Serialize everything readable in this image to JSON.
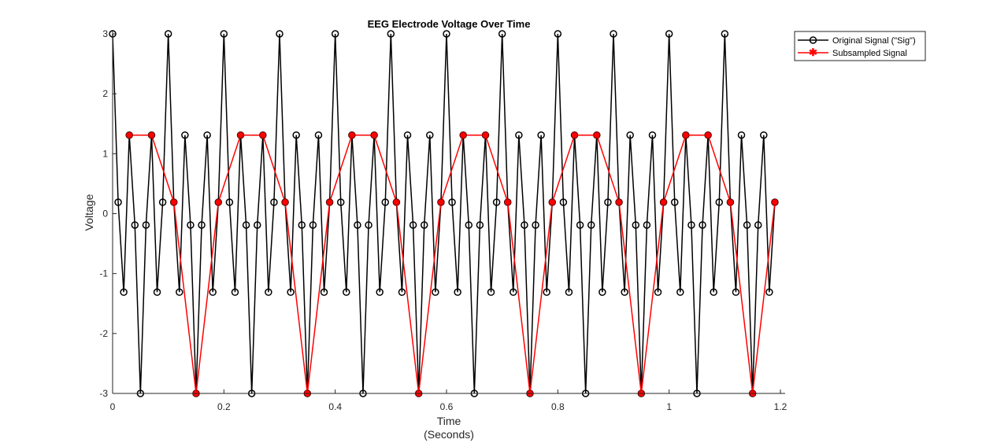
{
  "chart_data": {
    "type": "line",
    "title": "EEG Electrode Voltage Over Time",
    "xlabel": "Time",
    "xlabel_sub": "(Seconds)",
    "ylabel": "Voltage",
    "xlim": [
      0,
      1.2
    ],
    "ylim": [
      -3,
      3
    ],
    "xticks": [
      0,
      0.2,
      0.4,
      0.6,
      0.8,
      1,
      1.2
    ],
    "xtick_labels": [
      "0",
      "0.2",
      "0.4",
      "0.6",
      "0.8",
      "1",
      "1.2"
    ],
    "yticks": [
      -3,
      -2,
      -1,
      0,
      1,
      2,
      3
    ],
    "ytick_labels": [
      "-3",
      "-2",
      "-1",
      "0",
      "1",
      "2",
      "3"
    ],
    "grid": false,
    "legend_position": "top-right",
    "series": [
      {
        "name": "Original Signal (\"Sig\")",
        "color": "#000000",
        "marker": "open-circle",
        "x": [
          0,
          0.01,
          0.02,
          0.03,
          0.04,
          0.05,
          0.06,
          0.07,
          0.08,
          0.09,
          0.1,
          0.11,
          0.12,
          0.13,
          0.14,
          0.15,
          0.16,
          0.17,
          0.18,
          0.19,
          0.2,
          0.21,
          0.22,
          0.23,
          0.24,
          0.25,
          0.26,
          0.27,
          0.28,
          0.29,
          0.3,
          0.31,
          0.32,
          0.33,
          0.34,
          0.35,
          0.36,
          0.37,
          0.38,
          0.39,
          0.4,
          0.41,
          0.42,
          0.43,
          0.44,
          0.45,
          0.46,
          0.47,
          0.48,
          0.49,
          0.5,
          0.51,
          0.52,
          0.53,
          0.54,
          0.55,
          0.56,
          0.57,
          0.58,
          0.59,
          0.6,
          0.61,
          0.62,
          0.63,
          0.64,
          0.65,
          0.66,
          0.67,
          0.68,
          0.69,
          0.7,
          0.71,
          0.72,
          0.73,
          0.74,
          0.75,
          0.76,
          0.77,
          0.78,
          0.79,
          0.8,
          0.81,
          0.82,
          0.83,
          0.84,
          0.85,
          0.86,
          0.87,
          0.88,
          0.89,
          0.9,
          0.91,
          0.92,
          0.93,
          0.94,
          0.95,
          0.96,
          0.97,
          0.98,
          0.99,
          1.0,
          1.01,
          1.02,
          1.03,
          1.04,
          1.05,
          1.06,
          1.07,
          1.08,
          1.09,
          1.1,
          1.11,
          1.12,
          1.13,
          1.14,
          1.15,
          1.16,
          1.17,
          1.18,
          1.19
        ],
        "y": [
          3,
          0.19,
          -1.31,
          1.31,
          -0.19,
          -3,
          -0.19,
          1.31,
          -1.31,
          0.19,
          3,
          0.19,
          -1.31,
          1.31,
          -0.19,
          -3,
          -0.19,
          1.31,
          -1.31,
          0.19,
          3,
          0.19,
          -1.31,
          1.31,
          -0.19,
          -3,
          -0.19,
          1.31,
          -1.31,
          0.19,
          3,
          0.19,
          -1.31,
          1.31,
          -0.19,
          -3,
          -0.19,
          1.31,
          -1.31,
          0.19,
          3,
          0.19,
          -1.31,
          1.31,
          -0.19,
          -3,
          -0.19,
          1.31,
          -1.31,
          0.19,
          3,
          0.19,
          -1.31,
          1.31,
          -0.19,
          -3,
          -0.19,
          1.31,
          -1.31,
          0.19,
          3,
          0.19,
          -1.31,
          1.31,
          -0.19,
          -3,
          -0.19,
          1.31,
          -1.31,
          0.19,
          3,
          0.19,
          -1.31,
          1.31,
          -0.19,
          -3,
          -0.19,
          1.31,
          -1.31,
          0.19,
          3,
          0.19,
          -1.31,
          1.31,
          -0.19,
          -3,
          -0.19,
          1.31,
          -1.31,
          0.19,
          3,
          0.19,
          -1.31,
          1.31,
          -0.19,
          -3,
          -0.19,
          1.31,
          -1.31,
          0.19,
          3,
          0.19,
          -1.31,
          1.31,
          -0.19,
          -3,
          -0.19,
          1.31,
          -1.31,
          0.19,
          3,
          0.19,
          -1.31,
          1.31,
          -0.19,
          -3,
          -0.19,
          1.31,
          -1.31,
          0.19
        ]
      },
      {
        "name": "Subsampled Signal",
        "color": "#ff0000",
        "marker": "filled-circle",
        "x": [
          0.03,
          0.07,
          0.11,
          0.15,
          0.19,
          0.23,
          0.27,
          0.31,
          0.35,
          0.39,
          0.43,
          0.47,
          0.51,
          0.55,
          0.59,
          0.63,
          0.67,
          0.71,
          0.75,
          0.79,
          0.83,
          0.87,
          0.91,
          0.95,
          0.99,
          1.03,
          1.07,
          1.11,
          1.15,
          1.19
        ],
        "y": [
          1.31,
          1.31,
          0.19,
          -3,
          0.19,
          1.31,
          1.31,
          0.19,
          -3,
          0.19,
          1.31,
          1.31,
          0.19,
          -3,
          0.19,
          1.31,
          1.31,
          0.19,
          -3,
          0.19,
          1.31,
          1.31,
          0.19,
          -3,
          0.19,
          1.31,
          1.31,
          0.19,
          -3,
          0.19
        ]
      }
    ]
  }
}
